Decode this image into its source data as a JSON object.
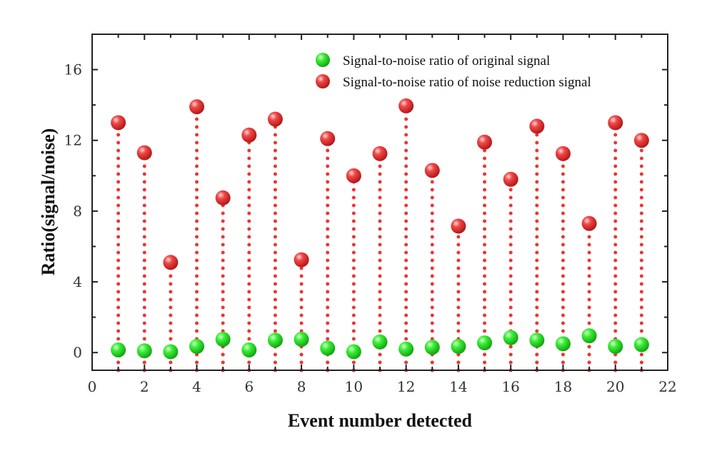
{
  "chart_data": {
    "type": "scatter",
    "title": "",
    "xlabel": "Event number detected",
    "ylabel": "Ratio(signal/noise)",
    "xlim": [
      0,
      22
    ],
    "ylim": [
      -1,
      18
    ],
    "x_ticks": [
      0,
      2,
      4,
      6,
      8,
      10,
      12,
      14,
      16,
      18,
      20,
      22
    ],
    "y_ticks": [
      0,
      4,
      8,
      12,
      16
    ],
    "x": [
      1,
      2,
      3,
      4,
      5,
      6,
      7,
      8,
      9,
      10,
      11,
      12,
      13,
      14,
      15,
      16,
      17,
      18,
      19,
      20,
      21
    ],
    "series": [
      {
        "name": "Signal-to-noise ratio of original signal",
        "color": "#22dd22",
        "values": [
          0.15,
          0.1,
          0.05,
          0.35,
          0.75,
          0.15,
          0.7,
          0.75,
          0.25,
          0.05,
          0.6,
          0.2,
          0.3,
          0.35,
          0.55,
          0.85,
          0.7,
          0.5,
          0.95,
          0.35,
          0.45
        ]
      },
      {
        "name": "Signal-to-noise ratio of noise reduction signal",
        "color": "#ee3333",
        "values": [
          13.0,
          11.3,
          5.1,
          13.9,
          8.75,
          12.3,
          13.2,
          5.25,
          12.1,
          10.0,
          11.25,
          13.95,
          10.3,
          7.15,
          11.9,
          9.8,
          12.8,
          11.25,
          7.3,
          13.0,
          12.0
        ]
      }
    ],
    "stems": true,
    "legend_position": "top-right",
    "grid": false
  }
}
